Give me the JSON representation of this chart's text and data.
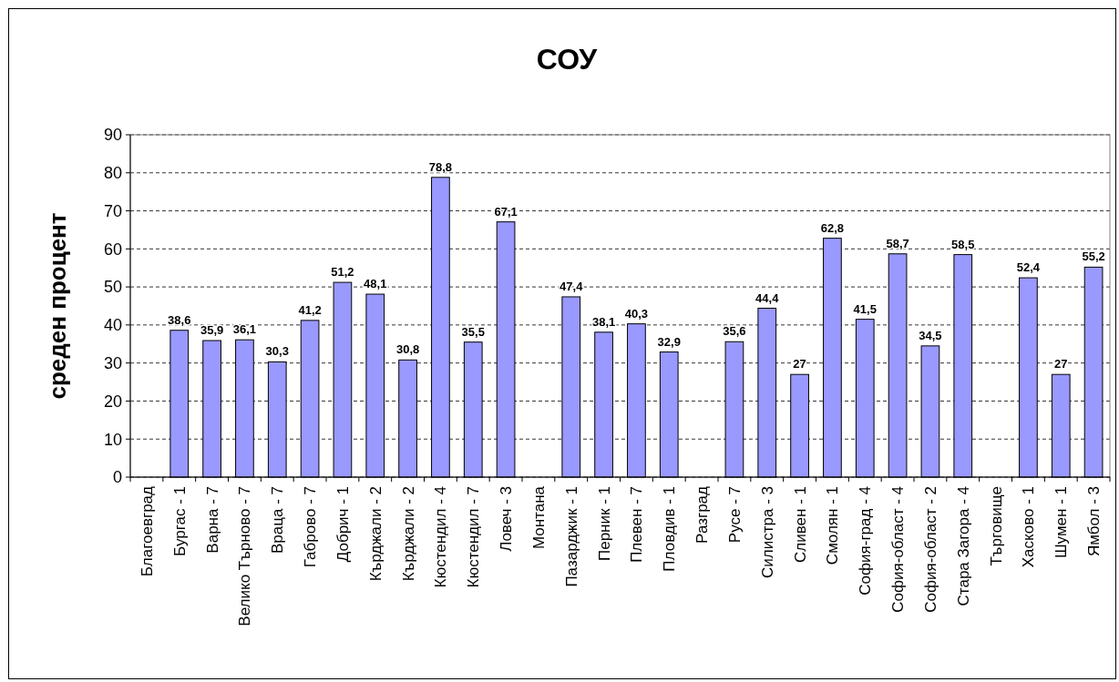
{
  "chart_data": {
    "type": "bar",
    "title": "СОУ",
    "ylabel": "среден процент",
    "categories": [
      "Благоевград",
      "Бургас - 1",
      "Варна - 7",
      "Велико Търново - 7",
      "Враца - 7",
      "Габрово - 7",
      "Добрич - 1",
      "Кърджали - 2",
      "Кърджали - 2",
      "Кюстендил - 4",
      "Кюстендил - 7",
      "Ловеч - 3",
      "Монтана",
      "Пазарджик - 1",
      "Перник - 1",
      "Плевен - 7",
      "Пловдив - 1",
      "Разград",
      "Русе - 7",
      "Силистра - 3",
      "Сливен - 1",
      "Смолян - 1",
      "София-град - 4",
      "София-област - 4",
      "София-област - 2",
      "Стара Загора - 4",
      "Търговище",
      "Хасково - 1",
      "Шумен - 1",
      "Ямбол - 3"
    ],
    "values": [
      null,
      38.6,
      35.9,
      36.1,
      30.3,
      41.2,
      51.2,
      48.1,
      30.8,
      78.8,
      35.5,
      67.1,
      null,
      47.4,
      38.1,
      40.3,
      32.9,
      null,
      35.6,
      44.4,
      27,
      62.8,
      41.5,
      58.7,
      34.5,
      58.5,
      null,
      52.4,
      27,
      55.2
    ],
    "value_labels": [
      null,
      "38,6",
      "35,9",
      "36,1",
      "30,3",
      "41,2",
      "51,2",
      "48,1",
      "30,8",
      "78,8",
      "35,5",
      "67,1",
      null,
      "47,4",
      "38,1",
      "40,3",
      "32,9",
      null,
      "35,6",
      "44,4",
      "27",
      "62,8",
      "41,5",
      "58,7",
      "34,5",
      "58,5",
      null,
      "52,4",
      "27",
      "55,2"
    ],
    "color": "#9999ff",
    "ylim": [
      0,
      90
    ],
    "yticks": [
      0,
      10,
      20,
      30,
      40,
      50,
      60,
      70,
      80,
      90
    ],
    "grid": "y",
    "line_style": "dashed"
  }
}
